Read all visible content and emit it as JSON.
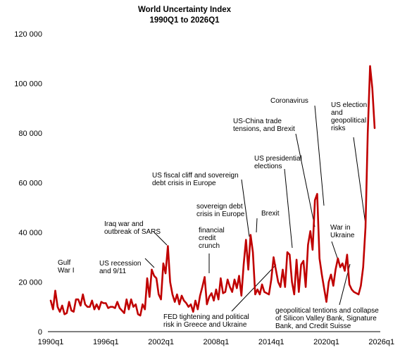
{
  "chart_data": {
    "type": "line",
    "title": "World Uncertainty Index",
    "subtitle": "1990Q1 to 2026Q1",
    "xlabel": "",
    "ylabel": "",
    "ylim": [
      0,
      120000
    ],
    "yticks": [
      0,
      20000,
      40000,
      60000,
      80000,
      100000,
      120000
    ],
    "ytick_labels": [
      "0",
      "20 000",
      "40 000",
      "60 000",
      "80 000",
      "100 000",
      "120 000"
    ],
    "xticks": [
      "1990q1",
      "1996q1",
      "2002q1",
      "2008q1",
      "2014q1",
      "2020q1",
      "2026q1"
    ],
    "grid": false,
    "line_color": "#c00000",
    "series": [
      {
        "x_start": "1990q1",
        "frequency": "quarterly",
        "values": [
          12500,
          9000,
          16500,
          10000,
          8000,
          10500,
          7000,
          7500,
          12000,
          8500,
          8000,
          13000,
          13000,
          10500,
          15000,
          11000,
          10000,
          10000,
          12500,
          9000,
          11000,
          9000,
          12000,
          11500,
          11500,
          9500,
          10000,
          10000,
          9500,
          12000,
          9500,
          8500,
          7500,
          13000,
          9000,
          13000,
          10000,
          11000,
          7000,
          6500,
          11000,
          9000,
          21500,
          14000,
          25000,
          22500,
          21500,
          15000,
          13000,
          27500,
          23500,
          34500,
          20000,
          15000,
          12000,
          15000,
          11000,
          14500,
          12500,
          11500,
          10000,
          11000,
          8000,
          12500,
          9000,
          14500,
          18000,
          22000,
          11000,
          14000,
          15500,
          12500,
          17000,
          13000,
          21500,
          15500,
          16000,
          21000,
          18000,
          16000,
          21000,
          17500,
          22500,
          14500,
          27000,
          37000,
          25000,
          39000,
          32000,
          15000,
          17000,
          15000,
          19000,
          16000,
          15500,
          15000,
          21000,
          30000,
          25000,
          20000,
          18000,
          25000,
          18000,
          32000,
          31000,
          20000,
          15000,
          29000,
          16000,
          27000,
          28500,
          18000,
          35000,
          40500,
          33000,
          53000,
          55500,
          29500,
          23000,
          17500,
          12000,
          20000,
          23000,
          18500,
          25000,
          29500,
          26000,
          27500,
          24500,
          31000,
          19000,
          17000,
          16000,
          15500,
          15000,
          18500,
          26000,
          42000,
          80000,
          107000,
          98000,
          82000
        ]
      }
    ],
    "annotations": [
      "Gulf\nWar I",
      "US recession\nand 9/11",
      "Iraq war and\noutbreak of SARS",
      "US fiscal cliff and sovereign\ndebt crisis in Europe",
      "sovereign debt\ncrisis in Europe",
      "financial\ncredit\ncrunch",
      "FED tightening and political\nrisk in Greece and Ukraine",
      "US-China trade\ntensions, and Brexit",
      "US presidential\nelections",
      "Brexit",
      "Coronavirus",
      "War in\nUkraine",
      "US election\nand\ngeopolitical\nrisks",
      "geopolitical tentions and collapse\nof Silicon Valley Bank, Signature\nBank, and Credit Suisse"
    ]
  }
}
